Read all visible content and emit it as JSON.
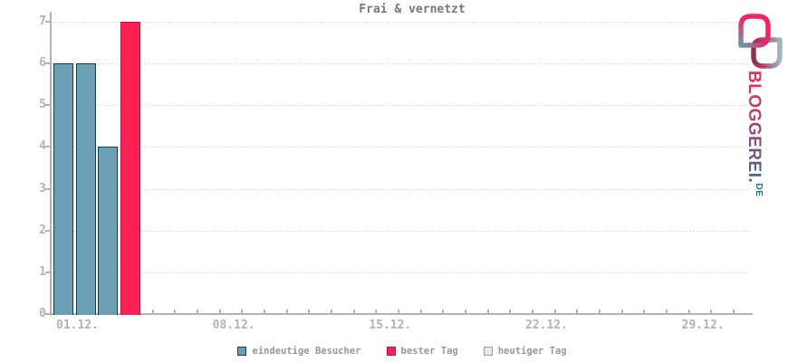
{
  "title": "Frai & vernetzt",
  "colors": {
    "axis": "#b3b3b3",
    "grid": "#cccccc",
    "axis_label": "#b2b2b2",
    "title_text": "#777777",
    "legend_text": "#979797",
    "blue_fill": "#6b9fb5",
    "blue_border": "#123f52",
    "red_fill": "#fc2154",
    "red_border": "#c01040",
    "gray_fill": "#e8e8e8",
    "gray_border": "#9a9a9a"
  },
  "chart_data": {
    "type": "bar",
    "title": "Frai & vernetzt",
    "xlabel": "",
    "ylabel": "",
    "ylim": [
      0,
      7
    ],
    "y_ticks": [
      0,
      1,
      2,
      3,
      4,
      5,
      6,
      7
    ],
    "x_days_total": 31,
    "x_tick_labels": [
      {
        "day": 1,
        "label": "01.12."
      },
      {
        "day": 8,
        "label": "08.12."
      },
      {
        "day": 15,
        "label": "15.12."
      },
      {
        "day": 22,
        "label": "22.12."
      },
      {
        "day": 29,
        "label": "29.12."
      }
    ],
    "grid": "dotted horizontal",
    "legend_position": "bottom center",
    "bars": [
      {
        "day": 1,
        "value": 6,
        "series": "eindeutige Besucher"
      },
      {
        "day": 2,
        "value": 6,
        "series": "eindeutige Besucher"
      },
      {
        "day": 3,
        "value": 4,
        "series": "eindeutige Besucher"
      },
      {
        "day": 4,
        "value": 7,
        "series": "bester Tag"
      }
    ],
    "legend": [
      {
        "label": "eindeutige Besucher",
        "fill": "#6b9fb5",
        "border": "#123f52"
      },
      {
        "label": "bester Tag",
        "fill": "#fc2154",
        "border": "#c01040"
      },
      {
        "label": "heutiger Tag",
        "fill": "#e8e8e8",
        "border": "#9a9a9a"
      }
    ]
  },
  "logo": {
    "text_main": "BLOGGEREI.",
    "text_suffix": "DE",
    "gradient": [
      "#ee2d5c",
      "#9c4a74",
      "#2f6e94"
    ],
    "link_gradient_a": [
      "#fb2058",
      "#ef2766",
      "#6f94a8"
    ],
    "link_gradient_b": [
      "#8c3050",
      "#b44868",
      "#9cb6c4"
    ]
  }
}
